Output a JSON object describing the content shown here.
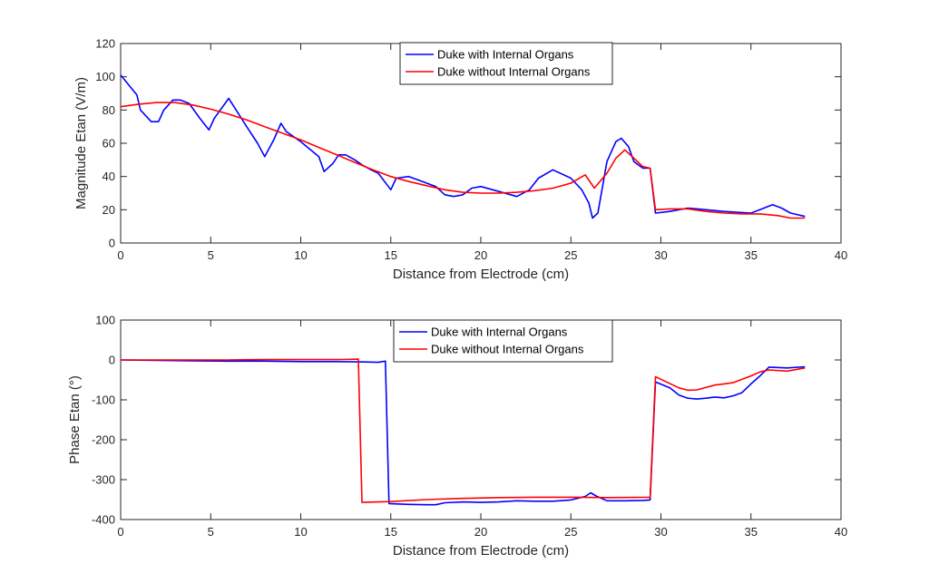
{
  "chart_data": [
    {
      "type": "line",
      "title": "",
      "xlabel": "Distance from Electrode (cm)",
      "ylabel": "Magnitude Etan (V/m)",
      "xlim": [
        0,
        40
      ],
      "ylim": [
        0,
        120
      ],
      "xticks": [
        "0",
        "5",
        "10",
        "15",
        "20",
        "25",
        "30",
        "35",
        "40"
      ],
      "yticks": [
        "0",
        "20",
        "40",
        "60",
        "80",
        "100",
        "120"
      ],
      "legend_position": "top-center",
      "grid": false,
      "series": [
        {
          "name": "Duke with Internal Organs",
          "color": "#0000ff",
          "points": [
            [
              0,
              101
            ],
            [
              0.9,
              89
            ],
            [
              1.1,
              80
            ],
            [
              1.7,
              73
            ],
            [
              2.1,
              73
            ],
            [
              2.4,
              80
            ],
            [
              2.9,
              86
            ],
            [
              3.3,
              86
            ],
            [
              3.8,
              84
            ],
            [
              4.4,
              75
            ],
            [
              4.9,
              68
            ],
            [
              5.2,
              75
            ],
            [
              6.0,
              87
            ],
            [
              7.0,
              70
            ],
            [
              7.6,
              60
            ],
            [
              8.0,
              52
            ],
            [
              8.5,
              62
            ],
            [
              8.9,
              72
            ],
            [
              9.2,
              67
            ],
            [
              10.0,
              61
            ],
            [
              11.0,
              52
            ],
            [
              11.3,
              43
            ],
            [
              11.8,
              48
            ],
            [
              12.1,
              53
            ],
            [
              12.5,
              53
            ],
            [
              13.0,
              50
            ],
            [
              13.4,
              47
            ],
            [
              13.9,
              44
            ],
            [
              14.3,
              42
            ],
            [
              15.0,
              32
            ],
            [
              15.3,
              39
            ],
            [
              16.0,
              40
            ],
            [
              17.0,
              36
            ],
            [
              17.5,
              34
            ],
            [
              18.0,
              29
            ],
            [
              18.5,
              28
            ],
            [
              19.0,
              29
            ],
            [
              19.5,
              33
            ],
            [
              20.0,
              34
            ],
            [
              21.0,
              31
            ],
            [
              22.0,
              28
            ],
            [
              22.7,
              32
            ],
            [
              23.2,
              39
            ],
            [
              24.0,
              44
            ],
            [
              25.0,
              39
            ],
            [
              25.6,
              32
            ],
            [
              26.0,
              24
            ],
            [
              26.2,
              15
            ],
            [
              26.5,
              18
            ],
            [
              27.0,
              49
            ],
            [
              27.5,
              61
            ],
            [
              27.8,
              63
            ],
            [
              28.2,
              58
            ],
            [
              28.5,
              49
            ],
            [
              29.0,
              45
            ],
            [
              29.4,
              45
            ],
            [
              29.7,
              18
            ],
            [
              30.5,
              19
            ],
            [
              31.5,
              21
            ],
            [
              32.5,
              20
            ],
            [
              33.5,
              19
            ],
            [
              35.0,
              18
            ],
            [
              35.5,
              20
            ],
            [
              36.2,
              23
            ],
            [
              36.7,
              21
            ],
            [
              37.2,
              18
            ],
            [
              38.0,
              16
            ]
          ]
        },
        {
          "name": "Duke without Internal Organs",
          "color": "#ff0000",
          "points": [
            [
              0,
              82
            ],
            [
              1,
              83.5
            ],
            [
              2,
              84.5
            ],
            [
              3,
              84.5
            ],
            [
              4,
              83
            ],
            [
              5,
              80.5
            ],
            [
              6,
              77.5
            ],
            [
              7,
              74
            ],
            [
              8,
              70
            ],
            [
              9,
              66
            ],
            [
              10,
              62
            ],
            [
              11,
              57.5
            ],
            [
              12,
              53
            ],
            [
              13,
              48.5
            ],
            [
              14,
              44
            ],
            [
              15,
              40
            ],
            [
              16,
              37
            ],
            [
              17,
              34.5
            ],
            [
              18,
              32
            ],
            [
              19,
              30.5
            ],
            [
              20,
              30
            ],
            [
              21,
              30
            ],
            [
              22,
              30.5
            ],
            [
              23,
              31.5
            ],
            [
              24,
              33
            ],
            [
              25,
              36
            ],
            [
              25.8,
              41
            ],
            [
              26.3,
              33
            ],
            [
              27.0,
              42
            ],
            [
              27.5,
              51
            ],
            [
              28.0,
              56
            ],
            [
              28.5,
              51
            ],
            [
              29.0,
              46
            ],
            [
              29.4,
              45
            ],
            [
              29.7,
              20
            ],
            [
              30.5,
              20.5
            ],
            [
              31.5,
              20.5
            ],
            [
              32.5,
              19
            ],
            [
              33.5,
              18
            ],
            [
              34.5,
              17.5
            ],
            [
              35.5,
              17.5
            ],
            [
              36.5,
              16.5
            ],
            [
              37.2,
              15
            ],
            [
              38.0,
              15
            ]
          ]
        }
      ]
    },
    {
      "type": "line",
      "title": "",
      "xlabel": "Distance from Electrode (cm)",
      "ylabel": "Phase Etan (°)",
      "xlim": [
        0,
        40
      ],
      "ylim": [
        -400,
        100
      ],
      "xticks": [
        "0",
        "5",
        "10",
        "15",
        "20",
        "25",
        "30",
        "35",
        "40"
      ],
      "yticks": [
        "-400",
        "-300",
        "-200",
        "-100",
        "0",
        "100"
      ],
      "legend_position": "top-center",
      "grid": false,
      "series": [
        {
          "name": "Duke with Internal Organs",
          "color": "#0000ff",
          "points": [
            [
              0,
              0
            ],
            [
              2,
              -1
            ],
            [
              4,
              -2
            ],
            [
              6,
              -3
            ],
            [
              8,
              -3
            ],
            [
              10,
              -4
            ],
            [
              12,
              -4
            ],
            [
              13.5,
              -5
            ],
            [
              14.3,
              -6
            ],
            [
              14.7,
              -3
            ],
            [
              14.9,
              -360
            ],
            [
              16,
              -362
            ],
            [
              17,
              -363
            ],
            [
              17.5,
              -363
            ],
            [
              18,
              -358
            ],
            [
              19,
              -356
            ],
            [
              20,
              -357
            ],
            [
              21,
              -356
            ],
            [
              22,
              -353
            ],
            [
              23,
              -354
            ],
            [
              24,
              -354
            ],
            [
              25,
              -351
            ],
            [
              25.8,
              -342
            ],
            [
              26.1,
              -333
            ],
            [
              26.4,
              -341
            ],
            [
              27,
              -353
            ],
            [
              28,
              -353
            ],
            [
              29,
              -352
            ],
            [
              29.4,
              -351
            ],
            [
              29.7,
              -55
            ],
            [
              30.5,
              -70
            ],
            [
              31,
              -88
            ],
            [
              31.5,
              -96
            ],
            [
              32,
              -98
            ],
            [
              32.5,
              -96
            ],
            [
              33,
              -93
            ],
            [
              33.5,
              -95
            ],
            [
              34,
              -90
            ],
            [
              34.5,
              -82
            ],
            [
              35,
              -60
            ],
            [
              35.5,
              -40
            ],
            [
              36,
              -18
            ],
            [
              37,
              -20
            ],
            [
              38,
              -17
            ]
          ]
        },
        {
          "name": "Duke without Internal Organs",
          "color": "#ff0000",
          "points": [
            [
              0,
              0
            ],
            [
              2,
              0
            ],
            [
              4,
              0
            ],
            [
              6,
              0
            ],
            [
              8,
              1
            ],
            [
              10,
              1
            ],
            [
              12,
              1
            ],
            [
              13.2,
              2
            ],
            [
              13.4,
              -357
            ],
            [
              15,
              -355
            ],
            [
              17,
              -350
            ],
            [
              19,
              -347
            ],
            [
              21,
              -345
            ],
            [
              23,
              -344
            ],
            [
              25,
              -344
            ],
            [
              27,
              -345
            ],
            [
              29.4,
              -344
            ],
            [
              29.7,
              -42
            ],
            [
              30.3,
              -55
            ],
            [
              31,
              -70
            ],
            [
              31.5,
              -76
            ],
            [
              32,
              -75
            ],
            [
              33,
              -63
            ],
            [
              33.5,
              -60
            ],
            [
              34,
              -57
            ],
            [
              35,
              -40
            ],
            [
              35.5,
              -30
            ],
            [
              36,
              -25
            ],
            [
              37,
              -28
            ],
            [
              38,
              -20
            ]
          ]
        }
      ]
    }
  ]
}
